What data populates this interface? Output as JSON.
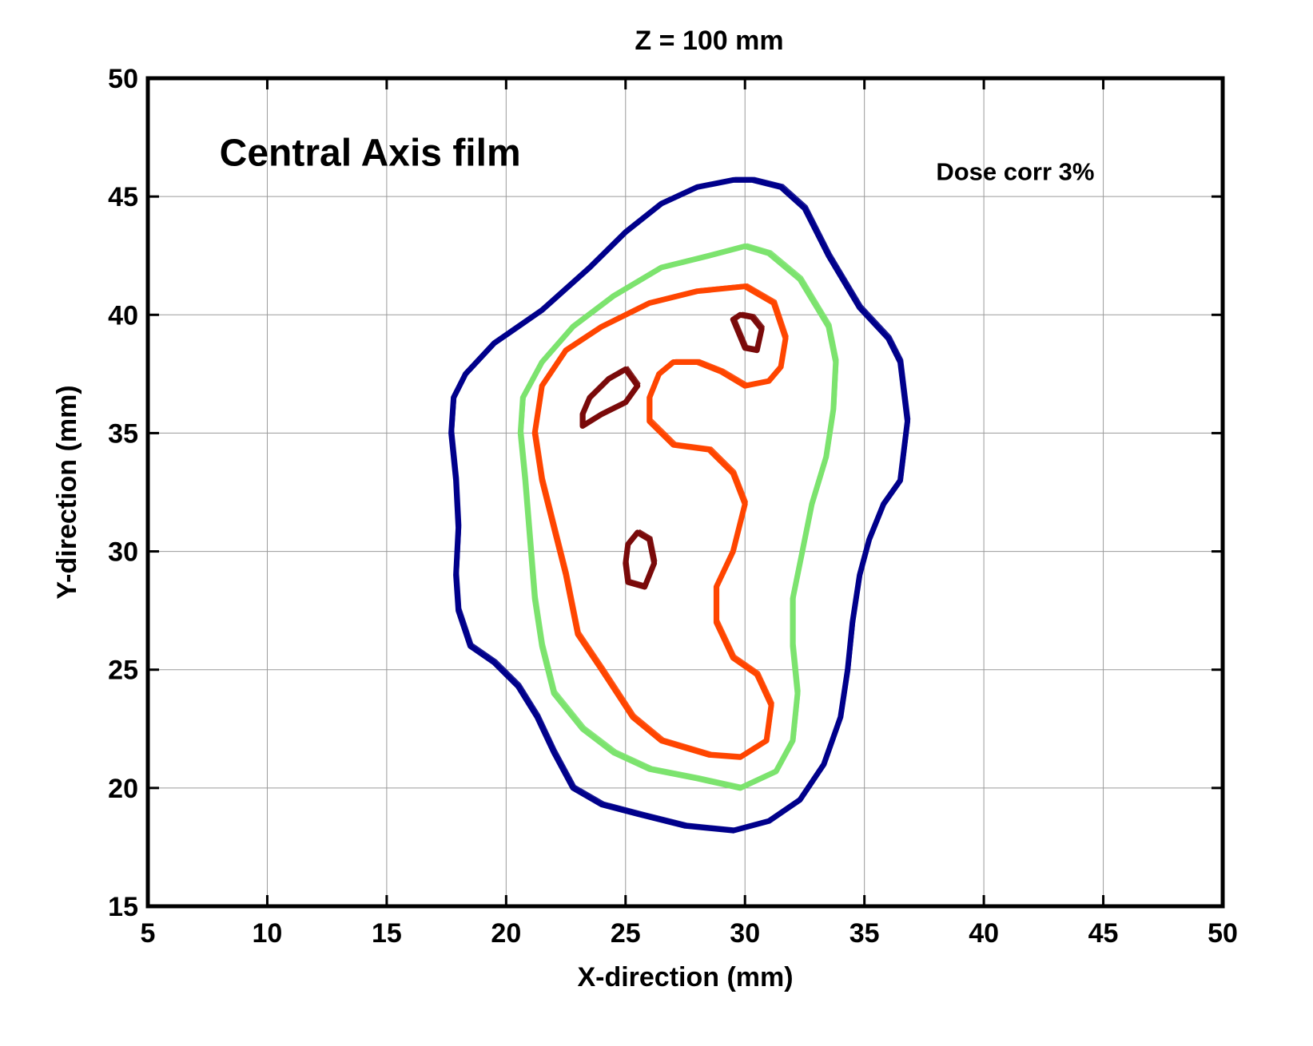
{
  "chart_data": {
    "type": "line",
    "title": "Z = 100 mm",
    "xlabel": "X-direction (mm)",
    "ylabel": "Y-direction (mm)",
    "xlim": [
      5,
      50
    ],
    "ylim": [
      15,
      50
    ],
    "xticks": [
      5,
      10,
      15,
      20,
      25,
      30,
      35,
      40,
      45,
      50
    ],
    "yticks": [
      15,
      20,
      25,
      30,
      35,
      40,
      45,
      50
    ],
    "grid": true,
    "annotations": [
      {
        "text": "Central Axis film",
        "x": 8.0,
        "y": 46.3
      },
      {
        "text": "Dose corr 3%",
        "x": 38.0,
        "y": 45.7
      }
    ],
    "series": [
      {
        "color": "#00008B",
        "points": [
          [
            29.5,
            18.2
          ],
          [
            27.5,
            18.4
          ],
          [
            25.5,
            18.9
          ],
          [
            24.0,
            19.3
          ],
          [
            22.8,
            20.0
          ],
          [
            22.0,
            21.5
          ],
          [
            21.3,
            23.0
          ],
          [
            20.5,
            24.3
          ],
          [
            19.5,
            25.3
          ],
          [
            18.5,
            26.0
          ],
          [
            18.0,
            27.5
          ],
          [
            17.9,
            29.0
          ],
          [
            18.0,
            31.0
          ],
          [
            17.9,
            33.0
          ],
          [
            17.7,
            35.0
          ],
          [
            17.8,
            36.5
          ],
          [
            18.3,
            37.5
          ],
          [
            19.5,
            38.8
          ],
          [
            21.5,
            40.2
          ],
          [
            23.5,
            42.0
          ],
          [
            25.0,
            43.5
          ],
          [
            26.5,
            44.7
          ],
          [
            28.0,
            45.4
          ],
          [
            29.5,
            45.7
          ],
          [
            30.3,
            45.7
          ],
          [
            31.5,
            45.4
          ],
          [
            32.5,
            44.5
          ],
          [
            33.5,
            42.5
          ],
          [
            34.8,
            40.3
          ],
          [
            36.0,
            39.0
          ],
          [
            36.5,
            38.0
          ],
          [
            36.8,
            35.5
          ],
          [
            36.5,
            33.0
          ],
          [
            35.8,
            32.0
          ],
          [
            35.2,
            30.5
          ],
          [
            34.8,
            29.0
          ],
          [
            34.5,
            27.0
          ],
          [
            34.3,
            25.0
          ],
          [
            34.0,
            23.0
          ],
          [
            33.3,
            21.0
          ],
          [
            32.3,
            19.5
          ],
          [
            31.0,
            18.6
          ],
          [
            29.5,
            18.2
          ]
        ]
      },
      {
        "color": "#7CE36E",
        "points": [
          [
            29.8,
            20.0
          ],
          [
            28.0,
            20.4
          ],
          [
            26.0,
            20.8
          ],
          [
            24.5,
            21.5
          ],
          [
            23.2,
            22.5
          ],
          [
            22.0,
            24.0
          ],
          [
            21.5,
            26.0
          ],
          [
            21.2,
            28.0
          ],
          [
            21.0,
            30.5
          ],
          [
            20.8,
            33.0
          ],
          [
            20.6,
            35.0
          ],
          [
            20.7,
            36.5
          ],
          [
            21.5,
            38.0
          ],
          [
            22.8,
            39.5
          ],
          [
            24.5,
            40.8
          ],
          [
            26.5,
            42.0
          ],
          [
            28.5,
            42.5
          ],
          [
            30.0,
            42.9
          ],
          [
            31.0,
            42.6
          ],
          [
            32.3,
            41.5
          ],
          [
            33.5,
            39.5
          ],
          [
            33.8,
            38.0
          ],
          [
            33.7,
            36.0
          ],
          [
            33.4,
            34.0
          ],
          [
            32.8,
            32.0
          ],
          [
            32.4,
            30.0
          ],
          [
            32.0,
            28.0
          ],
          [
            32.0,
            26.0
          ],
          [
            32.2,
            24.0
          ],
          [
            32.0,
            22.0
          ],
          [
            31.3,
            20.7
          ],
          [
            29.8,
            20.0
          ]
        ]
      },
      {
        "color": "#FF4500",
        "points": [
          [
            28.5,
            21.4
          ],
          [
            26.5,
            22.0
          ],
          [
            25.3,
            23.0
          ],
          [
            24.0,
            25.0
          ],
          [
            23.0,
            26.5
          ],
          [
            22.5,
            29.0
          ],
          [
            22.0,
            31.0
          ],
          [
            21.5,
            33.0
          ],
          [
            21.2,
            35.0
          ],
          [
            21.5,
            37.0
          ],
          [
            22.5,
            38.5
          ],
          [
            24.0,
            39.5
          ],
          [
            26.0,
            40.5
          ],
          [
            28.0,
            41.0
          ],
          [
            30.0,
            41.2
          ],
          [
            31.2,
            40.5
          ],
          [
            31.7,
            39.0
          ],
          [
            31.5,
            37.8
          ],
          [
            31.0,
            37.2
          ],
          [
            30.0,
            37.0
          ],
          [
            29.0,
            37.6
          ],
          [
            28.0,
            38.0
          ],
          [
            27.0,
            38.0
          ],
          [
            26.4,
            37.5
          ],
          [
            26.0,
            36.5
          ],
          [
            26.0,
            35.5
          ],
          [
            27.0,
            34.5
          ],
          [
            28.5,
            34.3
          ],
          [
            29.5,
            33.3
          ],
          [
            30.0,
            32.0
          ],
          [
            29.5,
            30.0
          ],
          [
            28.8,
            28.5
          ],
          [
            28.8,
            27.0
          ],
          [
            29.5,
            25.5
          ],
          [
            30.5,
            24.8
          ],
          [
            31.1,
            23.5
          ],
          [
            30.9,
            22.0
          ],
          [
            29.8,
            21.3
          ],
          [
            28.5,
            21.4
          ]
        ]
      },
      {
        "color": "#7A0A0A",
        "points": [
          [
            23.2,
            35.3
          ],
          [
            24.0,
            35.8
          ],
          [
            25.0,
            36.3
          ],
          [
            25.5,
            37.0
          ],
          [
            25.0,
            37.7
          ],
          [
            24.3,
            37.3
          ],
          [
            23.5,
            36.5
          ],
          [
            23.2,
            35.8
          ],
          [
            23.2,
            35.3
          ]
        ]
      },
      {
        "color": "#7A0A0A",
        "points": [
          [
            29.5,
            39.8
          ],
          [
            30.0,
            38.6
          ],
          [
            30.5,
            38.5
          ],
          [
            30.7,
            39.4
          ],
          [
            30.3,
            39.9
          ],
          [
            29.8,
            40.0
          ],
          [
            29.5,
            39.8
          ]
        ]
      },
      {
        "color": "#7A0A0A",
        "points": [
          [
            25.1,
            28.7
          ],
          [
            25.8,
            28.5
          ],
          [
            26.2,
            29.5
          ],
          [
            26.0,
            30.5
          ],
          [
            25.5,
            30.8
          ],
          [
            25.1,
            30.3
          ],
          [
            25.0,
            29.5
          ],
          [
            25.1,
            28.7
          ]
        ]
      }
    ]
  }
}
